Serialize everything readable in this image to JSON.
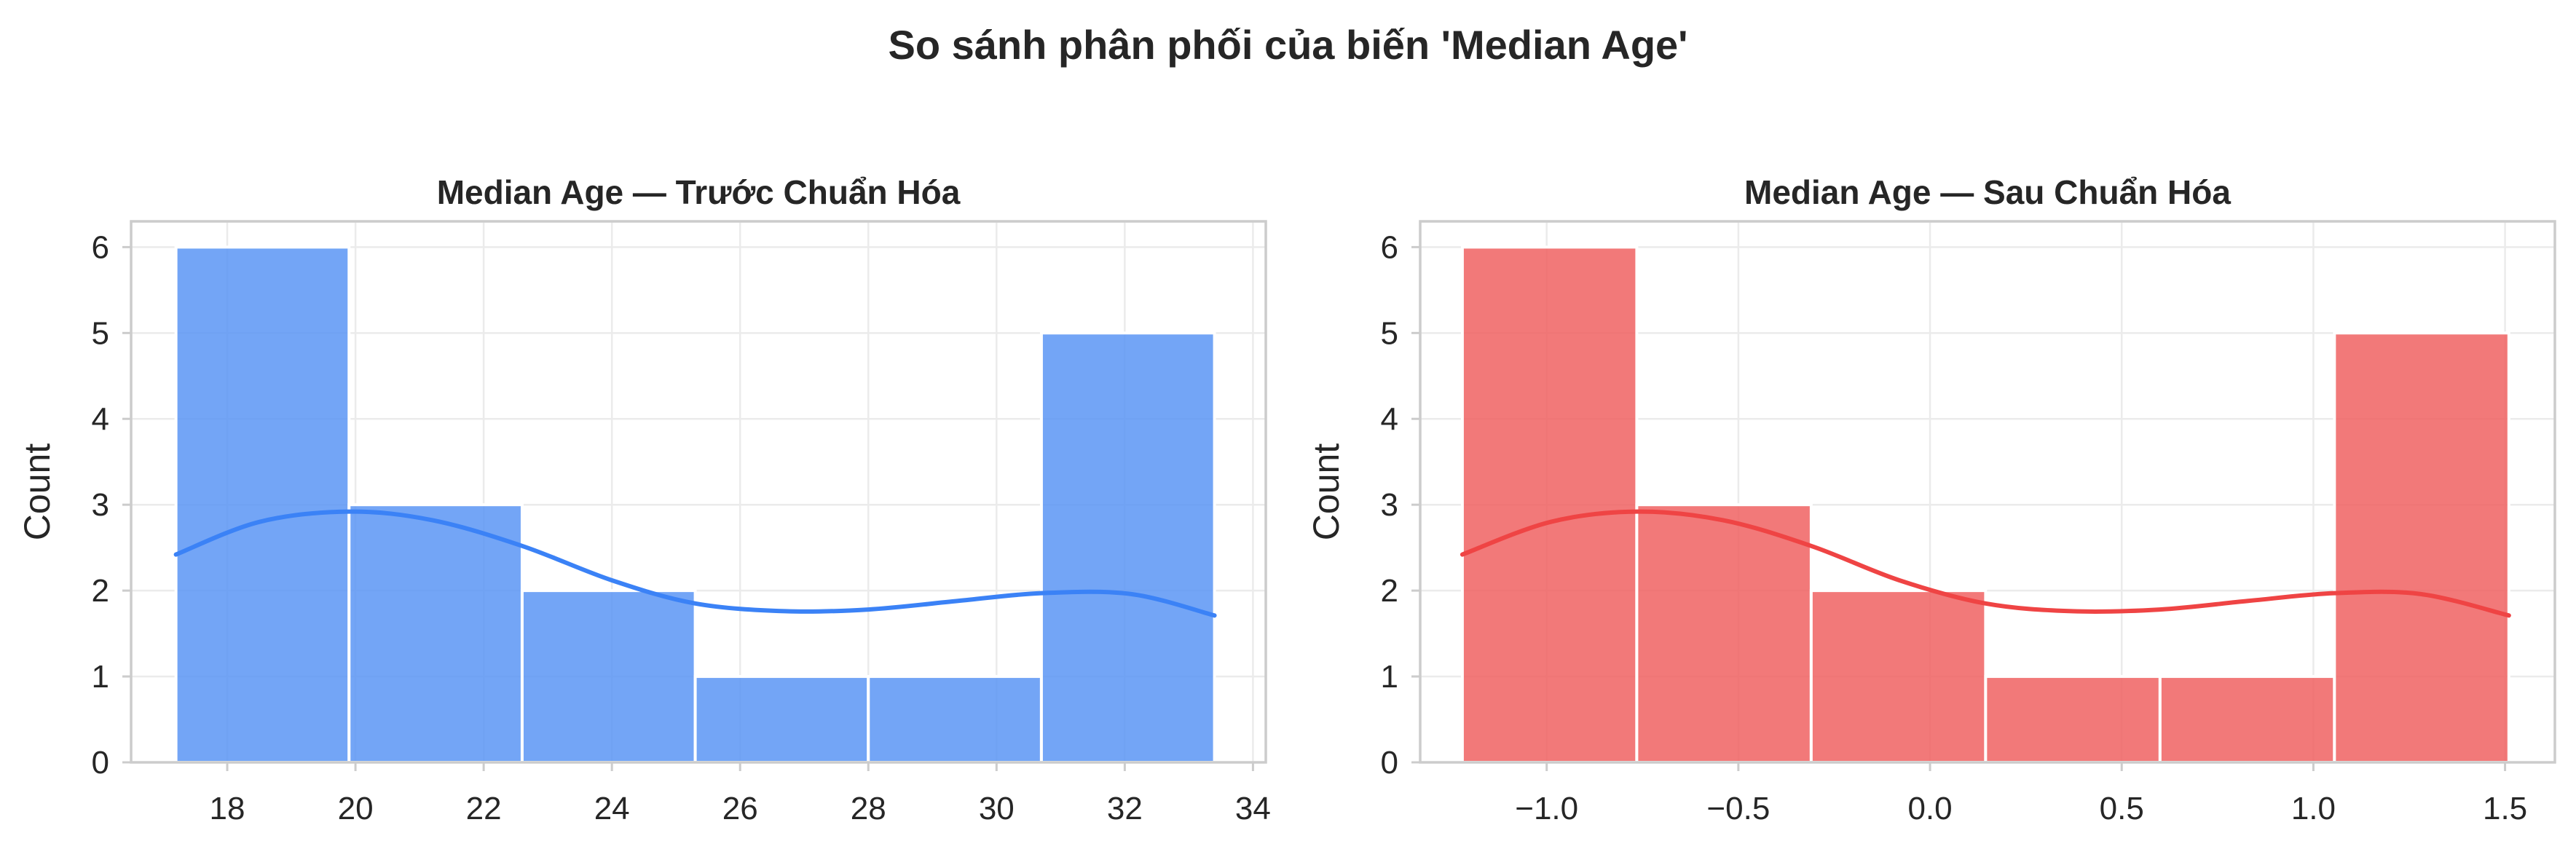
{
  "figure_title": "So sánh phân phối của biến 'Median Age'",
  "chart_data": [
    {
      "type": "bar",
      "subtype": "histogram_with_kde",
      "title": "Median Age — Trước Chuẩn Hóa",
      "xlabel": "",
      "ylabel": "Count",
      "xlim": [
        16.5,
        34.2
      ],
      "ylim": [
        0,
        6.3
      ],
      "xticks": [
        18,
        20,
        22,
        24,
        26,
        28,
        30,
        32,
        34
      ],
      "xtick_labels": [
        "18",
        "20",
        "22",
        "24",
        "26",
        "28",
        "30",
        "32",
        "34"
      ],
      "yticks": [
        0,
        1,
        2,
        3,
        4,
        5,
        6
      ],
      "ytick_labels": [
        "0",
        "1",
        "2",
        "3",
        "4",
        "5",
        "6"
      ],
      "bins": [
        {
          "x0": 17.2,
          "x1": 19.9,
          "count": 6
        },
        {
          "x0": 19.9,
          "x1": 22.6,
          "count": 3
        },
        {
          "x0": 22.6,
          "x1": 25.3,
          "count": 2
        },
        {
          "x0": 25.3,
          "x1": 28.0,
          "count": 1
        },
        {
          "x0": 28.0,
          "x1": 30.7,
          "count": 1
        },
        {
          "x0": 30.7,
          "x1": 33.4,
          "count": 5
        }
      ],
      "kde": {
        "x": [
          17.2,
          18.5,
          19.9,
          21.2,
          22.6,
          24.0,
          25.3,
          26.7,
          28.0,
          29.4,
          30.7,
          32.1,
          33.4
        ],
        "y": [
          2.42,
          2.8,
          2.92,
          2.82,
          2.52,
          2.12,
          1.85,
          1.76,
          1.78,
          1.88,
          1.97,
          1.96,
          1.71
        ]
      },
      "grid": true,
      "bar_color": "#5b95f5",
      "line_color": "#3b82f6"
    },
    {
      "type": "bar",
      "subtype": "histogram_with_kde",
      "title": "Median Age — Sau Chuẩn Hóa",
      "xlabel": "",
      "ylabel": "Count",
      "xlim": [
        -1.33,
        1.63
      ],
      "ylim": [
        0,
        6.3
      ],
      "xticks": [
        -1.0,
        -0.5,
        0.0,
        0.5,
        1.0,
        1.5
      ],
      "xtick_labels": [
        "−1.0",
        "−0.5",
        "0.0",
        "0.5",
        "1.0",
        "1.5"
      ],
      "yticks": [
        0,
        1,
        2,
        3,
        4,
        5,
        6
      ],
      "ytick_labels": [
        "0",
        "1",
        "2",
        "3",
        "4",
        "5",
        "6"
      ],
      "bins": [
        {
          "x0": -1.22,
          "x1": -0.765,
          "count": 6
        },
        {
          "x0": -0.765,
          "x1": -0.31,
          "count": 3
        },
        {
          "x0": -0.31,
          "x1": 0.145,
          "count": 2
        },
        {
          "x0": 0.145,
          "x1": 0.6,
          "count": 1
        },
        {
          "x0": 0.6,
          "x1": 1.055,
          "count": 1
        },
        {
          "x0": 1.055,
          "x1": 1.51,
          "count": 5
        }
      ],
      "kde": {
        "x": [
          -1.22,
          -0.99,
          -0.765,
          -0.54,
          -0.31,
          -0.08,
          0.145,
          0.37,
          0.6,
          0.83,
          1.055,
          1.28,
          1.51
        ],
        "y": [
          2.42,
          2.8,
          2.92,
          2.82,
          2.52,
          2.12,
          1.85,
          1.76,
          1.78,
          1.88,
          1.97,
          1.96,
          1.71
        ]
      },
      "grid": true,
      "bar_color": "#f06262",
      "line_color": "#ef4444"
    }
  ]
}
